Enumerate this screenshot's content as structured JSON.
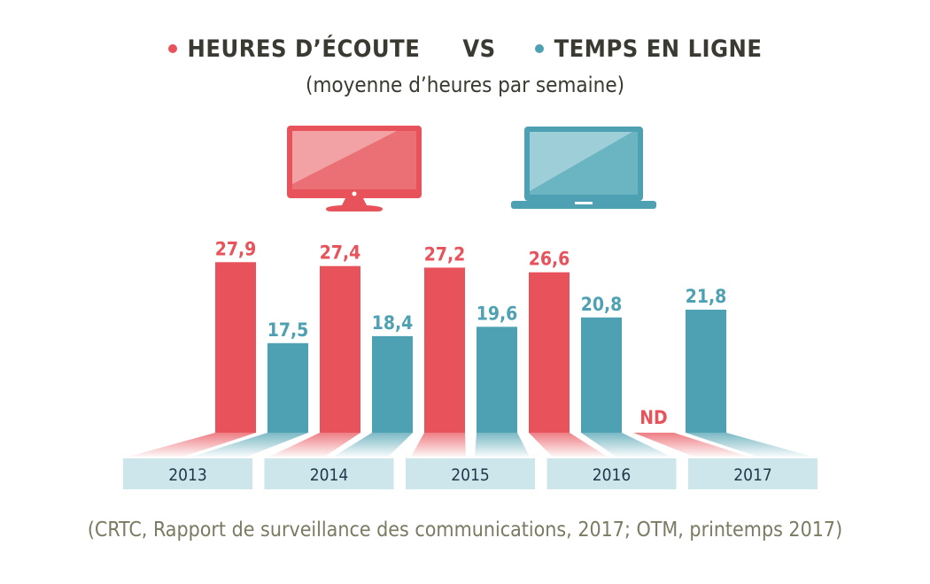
{
  "header": {
    "series1_label": "HEURES D’ÉCOUTE",
    "vs_label": "VS",
    "series2_label": "TEMPS EN LIGNE",
    "subtitle": "(moyenne d’heures par semaine)"
  },
  "icons": {
    "series1": "tv-monitor-icon",
    "series2": "laptop-icon"
  },
  "colors": {
    "series1": "#e8525a",
    "series2": "#4ea1b2",
    "year_box": "#cde6ec",
    "text_dark": "#3a3a32",
    "year_text": "#22384a"
  },
  "chart_data": {
    "type": "bar",
    "title": "HEURES D’ÉCOUTE VS TEMPS EN LIGNE",
    "subtitle": "(moyenne d’heures par semaine)",
    "xlabel": "",
    "ylabel": "",
    "categories": [
      "2013",
      "2014",
      "2015",
      "2016",
      "2017"
    ],
    "series": [
      {
        "name": "HEURES D’ÉCOUTE",
        "values": [
          27.9,
          27.4,
          27.2,
          26.6,
          null
        ],
        "labels": [
          "27,9",
          "27,4",
          "27,2",
          "26,6",
          "ND"
        ]
      },
      {
        "name": "TEMPS EN LIGNE",
        "values": [
          17.5,
          18.4,
          19.6,
          20.8,
          21.8
        ],
        "labels": [
          "17,5",
          "18,4",
          "19,6",
          "20,8",
          "21,8"
        ]
      }
    ],
    "grid": false,
    "legend": "top"
  },
  "footer": {
    "source": "(CRTC, Rapport de surveillance des communications, 2017; OTM, printemps 2017)"
  }
}
